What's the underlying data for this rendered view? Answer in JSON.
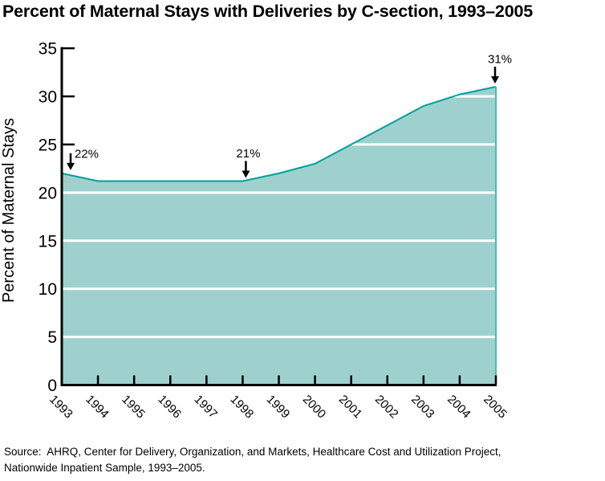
{
  "title": "Percent of Maternal Stays with Deliveries by C-section, 1993–2005",
  "source": {
    "line1": "Source:  AHRQ, Center for Delivery, Organization, and Markets, Healthcare Cost and Utilization Project,",
    "line2": "Nationwide Inpatient Sample, 1993–2005."
  },
  "chart_data": {
    "type": "area",
    "x": [
      1993,
      1994,
      1995,
      1996,
      1997,
      1998,
      1999,
      2000,
      2001,
      2002,
      2003,
      2004,
      2005
    ],
    "values": [
      22,
      21.2,
      21.2,
      21.2,
      21.2,
      21.2,
      22,
      23,
      25,
      27,
      29,
      30.2,
      31
    ],
    "title": "Percent of Maternal Stays with Deliveries by C-section, 1993–2005",
    "xlabel": "",
    "ylabel": "Percent of Maternal Stays",
    "ylim": [
      0,
      35
    ],
    "ytick_step": 5,
    "yticks": [
      "0",
      "5",
      "10",
      "15",
      "20",
      "25",
      "30",
      "35"
    ],
    "grid": "horizontal white lines over fill at 5-unit steps",
    "legend": "none",
    "annotations": [
      {
        "year": 1993,
        "value": 22,
        "label": "22%",
        "arrow": "down",
        "arrow_dx": 11,
        "label_dx": 5,
        "align": "start"
      },
      {
        "year": 1998,
        "value": 21,
        "label": "21%",
        "arrow": "down",
        "arrow_dx": 4,
        "label_dx": 3,
        "align": "middle"
      },
      {
        "year": 2005,
        "value": 31,
        "label": "31%",
        "arrow": "down",
        "arrow_dx": -1,
        "label_dx": 6,
        "align": "middle"
      }
    ],
    "colors": {
      "fill": "#9ed1ce",
      "line": "#00a09a",
      "right_edge": "#45bdb9",
      "grid": "#ffffff",
      "axis": "#000000",
      "text": "#000000",
      "background": "#ffffff"
    }
  }
}
